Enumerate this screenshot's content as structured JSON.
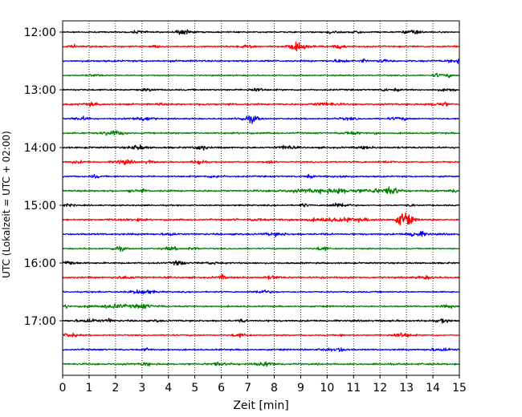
{
  "chart_data": {
    "type": "line",
    "title": "",
    "xlabel": "Zeit  [min]",
    "ylabel": "UTC (Lokalzeit = UTC + 02:00)",
    "xlim": [
      0,
      15
    ],
    "xticks": [
      "0",
      "1",
      "2",
      "3",
      "4",
      "5",
      "6",
      "7",
      "8",
      "9",
      "10",
      "11",
      "12",
      "13",
      "14",
      "15"
    ],
    "hour_labels": [
      "12:00",
      "13:00",
      "14:00",
      "15:00",
      "16:00",
      "17:00"
    ],
    "grid": "vertical dotted",
    "colors": [
      "#000000",
      "#ff0000",
      "#0000ff",
      "#008000"
    ],
    "traces": [
      {
        "time": "12:00",
        "color": "#000000"
      },
      {
        "time": "12:15",
        "color": "#ff0000"
      },
      {
        "time": "12:30",
        "color": "#0000ff"
      },
      {
        "time": "12:45",
        "color": "#008000"
      },
      {
        "time": "13:00",
        "color": "#000000"
      },
      {
        "time": "13:15",
        "color": "#ff0000"
      },
      {
        "time": "13:30",
        "color": "#0000ff"
      },
      {
        "time": "13:45",
        "color": "#008000"
      },
      {
        "time": "14:00",
        "color": "#000000"
      },
      {
        "time": "14:15",
        "color": "#ff0000"
      },
      {
        "time": "14:30",
        "color": "#0000ff"
      },
      {
        "time": "14:45",
        "color": "#008000",
        "event_min": 12.5
      },
      {
        "time": "15:00",
        "color": "#000000"
      },
      {
        "time": "15:15",
        "color": "#ff0000",
        "event_min": 12.9
      },
      {
        "time": "15:30",
        "color": "#0000ff"
      },
      {
        "time": "15:45",
        "color": "#008000"
      },
      {
        "time": "16:00",
        "color": "#000000"
      },
      {
        "time": "16:15",
        "color": "#ff0000"
      },
      {
        "time": "16:30",
        "color": "#0000ff"
      },
      {
        "time": "16:45",
        "color": "#008000"
      },
      {
        "time": "17:00",
        "color": "#000000"
      },
      {
        "time": "17:15",
        "color": "#ff0000"
      },
      {
        "time": "17:30",
        "color": "#0000ff"
      },
      {
        "time": "17:45",
        "color": "#008000"
      }
    ]
  }
}
